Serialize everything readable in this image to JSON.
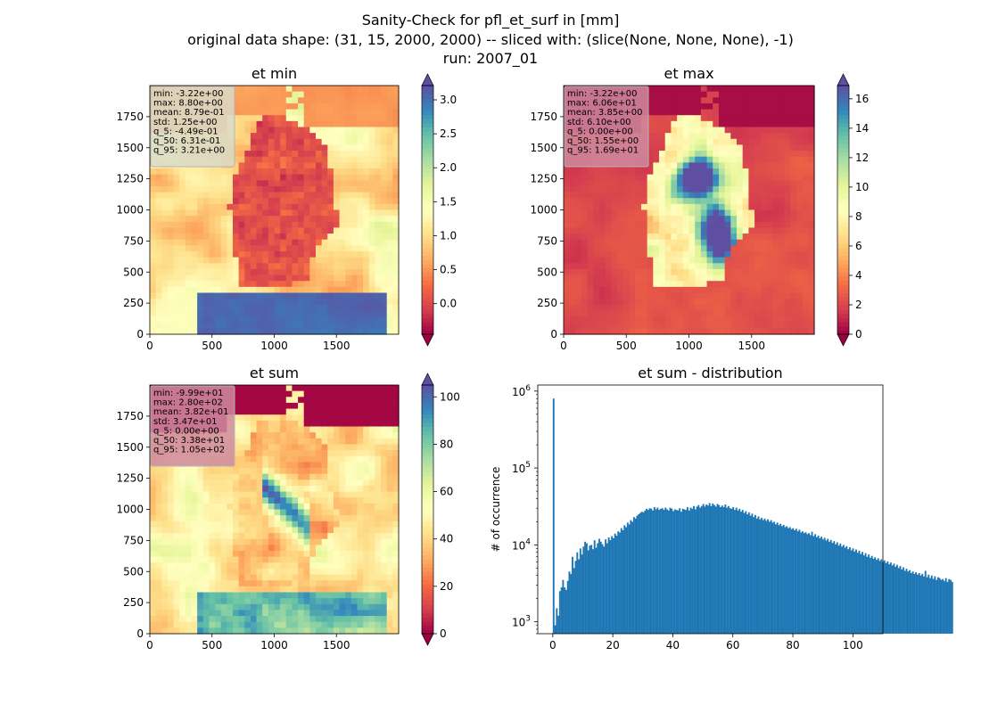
{
  "figure": {
    "title_lines": [
      "Sanity-Check for pfl_et_surf in [mm]",
      "original data shape: (31, 15, 2000, 2000) -- sliced with: (slice(None, None, None), -1)",
      "run: 2007_01"
    ]
  },
  "colors": {
    "hist_bar": "#1f77b4",
    "stats_box_light": "#d9dbc8",
    "stats_box_pink": "#cf8a9f",
    "colormap": "Spectral"
  },
  "chart_data": [
    {
      "type": "heatmap",
      "title": "et min",
      "xlim": [
        0,
        2000
      ],
      "ylim": [
        0,
        2000
      ],
      "xticks": [
        0,
        500,
        1000,
        1500
      ],
      "yticks": [
        0,
        250,
        500,
        750,
        1000,
        1250,
        1500,
        1750
      ],
      "colormap": "Spectral",
      "colorbar": {
        "vmin": -0.45,
        "vmax": 3.21,
        "ticks": [
          "0.0",
          "0.5",
          "1.0",
          "1.5",
          "2.0",
          "2.5",
          "3.0"
        ],
        "tick_values": [
          0,
          0.5,
          1,
          1.5,
          2,
          2.5,
          3
        ],
        "extend": "both"
      },
      "stats": [
        "min: -3.22e+00",
        "max: 8.80e+00",
        "mean: 8.79e-01",
        "std: 1.25e+00",
        "q_5: -4.49e-01",
        "q_50: 6.31e-01",
        "q_95: 3.21e+00"
      ]
    },
    {
      "type": "heatmap",
      "title": "et max",
      "xlim": [
        0,
        2000
      ],
      "ylim": [
        0,
        2000
      ],
      "xticks": [
        0,
        500,
        1000,
        1500
      ],
      "yticks": [
        0,
        250,
        500,
        750,
        1000,
        1250,
        1500,
        1750
      ],
      "colormap": "Spectral",
      "colorbar": {
        "vmin": 0,
        "vmax": 16.9,
        "ticks": [
          "0",
          "2",
          "4",
          "6",
          "8",
          "10",
          "12",
          "14",
          "16"
        ],
        "tick_values": [
          0,
          2,
          4,
          6,
          8,
          10,
          12,
          14,
          16
        ],
        "extend": "both"
      },
      "stats": [
        "min: -3.22e+00",
        "max: 6.06e+01",
        "mean: 3.85e+00",
        "std: 6.10e+00",
        "q_5: 0.00e+00",
        "q_50: 1.55e+00",
        "q_95: 1.69e+01"
      ]
    },
    {
      "type": "heatmap",
      "title": "et sum",
      "xlim": [
        0,
        2000
      ],
      "ylim": [
        0,
        2000
      ],
      "xticks": [
        0,
        500,
        1000,
        1500
      ],
      "yticks": [
        0,
        250,
        500,
        750,
        1000,
        1250,
        1500,
        1750
      ],
      "colormap": "Spectral",
      "colorbar": {
        "vmin": 0,
        "vmax": 105,
        "ticks": [
          "0",
          "20",
          "40",
          "60",
          "80",
          "100"
        ],
        "tick_values": [
          0,
          20,
          40,
          60,
          80,
          100
        ],
        "extend": "both"
      },
      "stats": [
        "min: -9.99e+01",
        "max: 2.80e+02",
        "mean: 3.82e+01",
        "std: 3.47e+01",
        "q_5: 0.00e+00",
        "q_50: 3.38e+01",
        "q_95: 1.05e+02"
      ]
    },
    {
      "type": "bar",
      "title": "et sum - distribution",
      "ylabel": "# of occurrence",
      "xlabel": "",
      "yscale": "log",
      "ylim": [
        700,
        1200000
      ],
      "xlim": [
        -5,
        110
      ],
      "xticks": [
        0,
        20,
        40,
        60,
        80,
        100
      ],
      "ytick_labels": [
        {
          "base": "10",
          "exp": "3"
        },
        {
          "base": "10",
          "exp": "4"
        },
        {
          "base": "10",
          "exp": "5"
        },
        {
          "base": "10",
          "exp": "6"
        }
      ],
      "bin_width": 0.525,
      "bin_start": 0,
      "values": [
        800000,
        900,
        1500,
        1200,
        2500,
        2800,
        3500,
        2800,
        2600,
        3400,
        4500,
        4200,
        7000,
        5000,
        6200,
        8000,
        6500,
        9000,
        7500,
        9500,
        11000,
        10500,
        8500,
        9800,
        10000,
        8800,
        11500,
        9200,
        10500,
        12000,
        11000,
        10200,
        9500,
        11800,
        10500,
        12500,
        11500,
        13000,
        12200,
        14000,
        13200,
        15000,
        14500,
        16500,
        15500,
        18000,
        17000,
        19500,
        18500,
        21000,
        20000,
        23000,
        22000,
        24000,
        25000,
        26000,
        27000,
        26500,
        28000,
        29500,
        28500,
        30000,
        29500,
        28000,
        31000,
        29000,
        30500,
        28500,
        29500,
        30000,
        28500,
        30500,
        29000,
        28000,
        30500,
        29500,
        27500,
        29000,
        28500,
        28000,
        30000,
        27000,
        29500,
        29000,
        28500,
        31000,
        28000,
        30500,
        29500,
        32000,
        29000,
        31500,
        33000,
        30500,
        32000,
        34000,
        31500,
        33500,
        32500,
        35000,
        32000,
        34500,
        33000,
        31500,
        34000,
        33000,
        31000,
        32500,
        31000,
        33500,
        30500,
        32000,
        30000,
        29500,
        31000,
        28500,
        30500,
        28000,
        29500,
        27000,
        28500,
        26000,
        27500,
        25000,
        26500,
        24000,
        25500,
        23000,
        24500,
        22000,
        23500,
        21500,
        22500,
        21000,
        22000,
        20500,
        21500,
        20000,
        21000,
        19500,
        20000,
        18500,
        19500,
        18000,
        18800,
        17500,
        18200,
        17000,
        17500,
        16500,
        17000,
        16000,
        16500,
        15500,
        16200,
        15000,
        15800,
        14500,
        15000,
        14200,
        14600,
        13800,
        14200,
        13400,
        14800,
        13000,
        13800,
        12600,
        13200,
        12200,
        12800,
        11800,
        12400,
        11400,
        12000,
        11000,
        11600,
        10600,
        11200,
        10200,
        10800,
        9800,
        10400,
        9500,
        10000,
        9200,
        9600,
        8800,
        9300,
        8500,
        9000,
        8200,
        8700,
        7900,
        8400,
        7600,
        8100,
        7300,
        7800,
        7000,
        7500,
        6800,
        7200,
        6600,
        6900,
        6400,
        6700,
        6200,
        6500,
        6000,
        6300,
        5800,
        6100,
        5600,
        5900,
        5400,
        5700,
        5200,
        5500,
        5000,
        5300,
        4800,
        5100,
        4600,
        4900,
        4500,
        4700,
        4300,
        4500,
        4200,
        4400,
        4100,
        4300,
        4000,
        4200,
        3900,
        4600,
        3800,
        4100,
        3700,
        4000,
        3600,
        3900,
        3500,
        3800,
        3700,
        3500,
        3600,
        3400,
        3700,
        3300,
        3600,
        3500,
        3300
      ]
    }
  ]
}
